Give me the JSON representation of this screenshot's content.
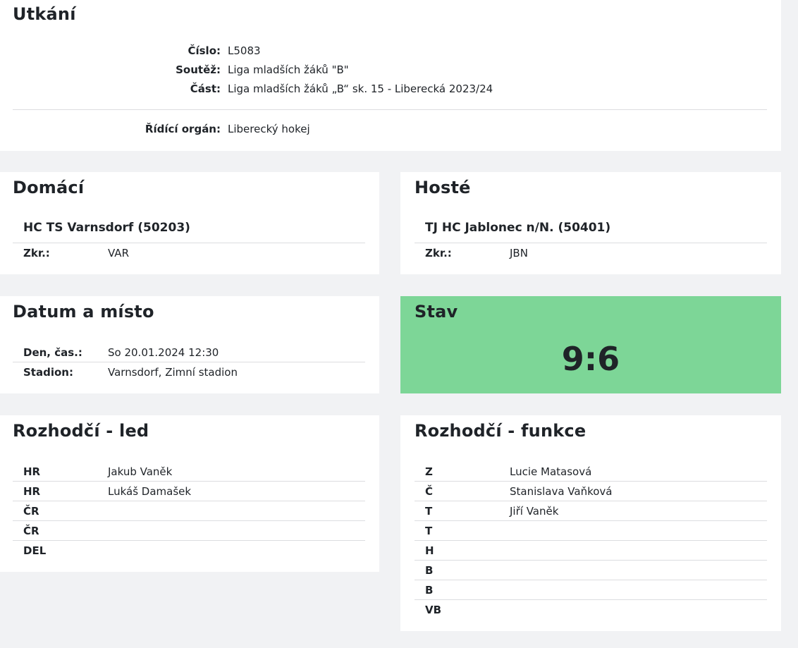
{
  "match": {
    "title": "Utkání",
    "rows": [
      {
        "label": "Číslo:",
        "value": "L5083"
      },
      {
        "label": "Soutěž:",
        "value": "Liga mladších žáků \"B\""
      },
      {
        "label": "Část:",
        "value": "Liga mladších žáků „B“ sk. 15 - Liberecká 2023/24"
      }
    ],
    "governing": {
      "label": "Řídící orgán:",
      "value": "Liberecký hokej"
    }
  },
  "home": {
    "title": "Domácí",
    "team": "HC TS Varnsdorf (50203)",
    "abbr_label": "Zkr.:",
    "abbr": "VAR"
  },
  "away": {
    "title": "Hosté",
    "team": "TJ HC Jablonec n/N. (50401)",
    "abbr_label": "Zkr.:",
    "abbr": "JBN"
  },
  "datetime": {
    "title": "Datum a místo",
    "rows": [
      {
        "label": "Den, čas.:",
        "value": "So 20.01.2024 12:30"
      },
      {
        "label": "Stadion:",
        "value": "Varnsdorf, Zimní stadion"
      }
    ]
  },
  "status": {
    "title": "Stav",
    "score": "9:6",
    "color": "#7dd697"
  },
  "referees_ice": {
    "title": "Rozhodčí - led",
    "rows": [
      {
        "role": "HR",
        "name": "Jakub Vaněk"
      },
      {
        "role": "HR",
        "name": "Lukáš Damašek"
      },
      {
        "role": "ČR",
        "name": ""
      },
      {
        "role": "ČR",
        "name": ""
      },
      {
        "role": "DEL",
        "name": ""
      }
    ]
  },
  "referees_func": {
    "title": "Rozhodčí - funkce",
    "rows": [
      {
        "role": "Z",
        "name": "Lucie Matasová"
      },
      {
        "role": "Č",
        "name": "Stanislava Vaňková"
      },
      {
        "role": "T",
        "name": "Jiří Vaněk"
      },
      {
        "role": "T",
        "name": ""
      },
      {
        "role": "H",
        "name": ""
      },
      {
        "role": "B",
        "name": ""
      },
      {
        "role": "B",
        "name": ""
      },
      {
        "role": "VB",
        "name": ""
      }
    ]
  }
}
